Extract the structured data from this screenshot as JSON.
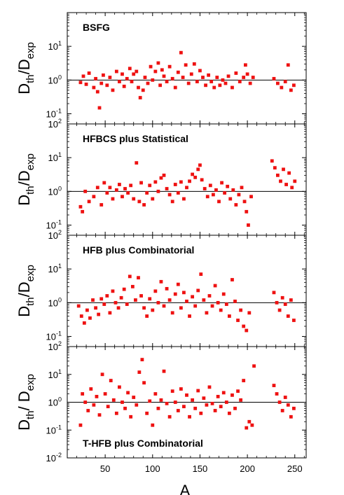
{
  "chart_data": {
    "type": "scatter",
    "xlabel": "A",
    "x_ticks": [
      "50",
      "100",
      "150",
      "200",
      "250"
    ],
    "xlim": [
      10,
      262
    ],
    "y_scale": "log",
    "marker_color": "#ee1111",
    "reference_line_y": 1,
    "panels": [
      {
        "title": "BSFG",
        "title_position": "top-left",
        "ylabel_main": "D",
        "ylabel_sub1": "th",
        "ylabel_mid": "/D",
        "ylabel_sub2": "exp",
        "ylim": [
          100,
          0.05
        ],
        "y_ticks": [
          {
            "base": "10",
            "exp": "1",
            "value": 10
          },
          {
            "base": "10",
            "exp": "0",
            "value": 1
          },
          {
            "base": "10",
            "exp": "-1",
            "value": 0.1
          },
          {
            "base": "10",
            "exp": "2",
            "value": 100
          }
        ],
        "points": [
          [
            24,
            0.85
          ],
          [
            27,
            1.3
          ],
          [
            30,
            0.75
          ],
          [
            33,
            1.6
          ],
          [
            38,
            0.6
          ],
          [
            40,
            1.1
          ],
          [
            42,
            0.45
          ],
          [
            44,
            0.15
          ],
          [
            46,
            0.8
          ],
          [
            48,
            1.4
          ],
          [
            52,
            0.7
          ],
          [
            55,
            1.2
          ],
          [
            58,
            0.5
          ],
          [
            62,
            1.8
          ],
          [
            65,
            0.9
          ],
          [
            68,
            1.5
          ],
          [
            70,
            0.65
          ],
          [
            73,
            1.1
          ],
          [
            76,
            2.2
          ],
          [
            78,
            0.9
          ],
          [
            80,
            1.5
          ],
          [
            83,
            1.8
          ],
          [
            85,
            0.6
          ],
          [
            87,
            0.3
          ],
          [
            90,
            0.5
          ],
          [
            92,
            1.2
          ],
          [
            95,
            0.8
          ],
          [
            98,
            2.5
          ],
          [
            100,
            1.0
          ],
          [
            103,
            1.8
          ],
          [
            106,
            3.2
          ],
          [
            108,
            0.7
          ],
          [
            110,
            2.0
          ],
          [
            112,
            1.3
          ],
          [
            115,
            0.9
          ],
          [
            118,
            2.5
          ],
          [
            121,
            1.1
          ],
          [
            124,
            0.6
          ],
          [
            127,
            1.7
          ],
          [
            130,
            6.5
          ],
          [
            132,
            1.2
          ],
          [
            135,
            2.8
          ],
          [
            138,
            0.8
          ],
          [
            141,
            1.5
          ],
          [
            144,
            3.0
          ],
          [
            147,
            0.9
          ],
          [
            150,
            1.9
          ],
          [
            153,
            1.2
          ],
          [
            156,
            0.7
          ],
          [
            159,
            1.4
          ],
          [
            162,
            0.9
          ],
          [
            165,
            0.6
          ],
          [
            168,
            1.2
          ],
          [
            171,
            0.7
          ],
          [
            174,
            1.0
          ],
          [
            177,
            0.8
          ],
          [
            180,
            1.3
          ],
          [
            184,
            0.6
          ],
          [
            188,
            1.6
          ],
          [
            192,
            0.9
          ],
          [
            196,
            1.2
          ],
          [
            198,
            2.8
          ],
          [
            200,
            1.5
          ],
          [
            203,
            0.8
          ],
          [
            206,
            1.2
          ],
          [
            228,
            1.1
          ],
          [
            232,
            0.8
          ],
          [
            236,
            0.6
          ],
          [
            240,
            0.9
          ],
          [
            243,
            2.8
          ],
          [
            246,
            0.5
          ],
          [
            249,
            0.7
          ]
        ]
      },
      {
        "title": "HFBCS plus Statistical",
        "title_position": "top-left",
        "ylabel_main": "D",
        "ylabel_sub1": "th",
        "ylabel_mid": "/D",
        "ylabel_sub2": "exp",
        "ylim": [
          100,
          0.05
        ],
        "y_ticks": [
          {
            "base": "10",
            "exp": "1",
            "value": 10
          },
          {
            "base": "10",
            "exp": "0",
            "value": 1
          },
          {
            "base": "10",
            "exp": "-1",
            "value": 0.1
          },
          {
            "base": "10",
            "exp": "2",
            "value": 100
          }
        ],
        "points": [
          [
            24,
            0.35
          ],
          [
            26,
            0.25
          ],
          [
            29,
            1.0
          ],
          [
            33,
            0.5
          ],
          [
            38,
            0.7
          ],
          [
            42,
            1.3
          ],
          [
            46,
            0.4
          ],
          [
            49,
            1.8
          ],
          [
            52,
            0.9
          ],
          [
            55,
            1.3
          ],
          [
            58,
            0.6
          ],
          [
            62,
            1.1
          ],
          [
            65,
            1.6
          ],
          [
            68,
            0.7
          ],
          [
            71,
            1.2
          ],
          [
            74,
            0.9
          ],
          [
            77,
            1.5
          ],
          [
            80,
            0.6
          ],
          [
            83,
            7.0
          ],
          [
            86,
            0.5
          ],
          [
            88,
            1.8
          ],
          [
            91,
            0.4
          ],
          [
            94,
            0.9
          ],
          [
            97,
            1.5
          ],
          [
            100,
            0.6
          ],
          [
            103,
            1.9
          ],
          [
            106,
            1.0
          ],
          [
            109,
            2.5
          ],
          [
            112,
            3.0
          ],
          [
            115,
            1.2
          ],
          [
            118,
            0.8
          ],
          [
            121,
            0.5
          ],
          [
            124,
            1.6
          ],
          [
            127,
            0.9
          ],
          [
            130,
            1.9
          ],
          [
            133,
            0.6
          ],
          [
            136,
            1.3
          ],
          [
            139,
            2.0
          ],
          [
            142,
            3.2
          ],
          [
            145,
            2.6
          ],
          [
            148,
            4.5
          ],
          [
            150,
            6.0
          ],
          [
            152,
            2.2
          ],
          [
            155,
            1.2
          ],
          [
            158,
            0.7
          ],
          [
            161,
            1.5
          ],
          [
            164,
            0.8
          ],
          [
            167,
            1.1
          ],
          [
            170,
            0.5
          ],
          [
            173,
            1.8
          ],
          [
            176,
            0.9
          ],
          [
            179,
            1.4
          ],
          [
            182,
            0.6
          ],
          [
            185,
            1.1
          ],
          [
            188,
            0.4
          ],
          [
            191,
            0.8
          ],
          [
            194,
            1.3
          ],
          [
            197,
            0.5
          ],
          [
            199,
            0.25
          ],
          [
            201,
            0.1
          ],
          [
            204,
            0.7
          ],
          [
            226,
            8.0
          ],
          [
            229,
            5.0
          ],
          [
            232,
            3.0
          ],
          [
            235,
            2.0
          ],
          [
            238,
            4.5
          ],
          [
            241,
            1.6
          ],
          [
            244,
            3.5
          ],
          [
            247,
            1.3
          ],
          [
            250,
            2.0
          ]
        ]
      },
      {
        "title": "HFB plus Combinatorial",
        "title_position": "top-left",
        "ylabel_main": "D",
        "ylabel_sub1": "th",
        "ylabel_mid": "/D",
        "ylabel_sub2": "exp",
        "ylim": [
          100,
          0.05
        ],
        "y_ticks": [
          {
            "base": "10",
            "exp": "1",
            "value": 10
          },
          {
            "base": "10",
            "exp": "0",
            "value": 1
          },
          {
            "base": "10",
            "exp": "-1",
            "value": 0.1
          },
          {
            "base": "10",
            "exp": "2",
            "value": 100
          }
        ],
        "points": [
          [
            22,
            0.8
          ],
          [
            25,
            0.4
          ],
          [
            28,
            0.25
          ],
          [
            31,
            0.6
          ],
          [
            34,
            0.35
          ],
          [
            37,
            1.2
          ],
          [
            40,
            0.7
          ],
          [
            43,
            0.45
          ],
          [
            46,
            1.3
          ],
          [
            49,
            0.9
          ],
          [
            52,
            1.6
          ],
          [
            55,
            0.5
          ],
          [
            58,
            2.2
          ],
          [
            61,
            1.0
          ],
          [
            64,
            0.7
          ],
          [
            67,
            1.4
          ],
          [
            70,
            2.5
          ],
          [
            73,
            0.9
          ],
          [
            76,
            6.0
          ],
          [
            79,
            3.0
          ],
          [
            82,
            1.2
          ],
          [
            85,
            5.5
          ],
          [
            88,
            1.6
          ],
          [
            91,
            0.7
          ],
          [
            94,
            0.4
          ],
          [
            97,
            1.3
          ],
          [
            100,
            0.6
          ],
          [
            103,
            2.2
          ],
          [
            106,
            1.0
          ],
          [
            109,
            4.2
          ],
          [
            112,
            0.8
          ],
          [
            115,
            2.6
          ],
          [
            118,
            1.2
          ],
          [
            121,
            0.5
          ],
          [
            124,
            1.8
          ],
          [
            127,
            3.5
          ],
          [
            130,
            0.7
          ],
          [
            133,
            2.0
          ],
          [
            136,
            1.1
          ],
          [
            139,
            0.4
          ],
          [
            142,
            1.5
          ],
          [
            145,
            0.8
          ],
          [
            148,
            2.3
          ],
          [
            151,
            7.0
          ],
          [
            154,
            1.2
          ],
          [
            157,
            0.5
          ],
          [
            160,
            1.6
          ],
          [
            163,
            0.8
          ],
          [
            166,
            3.2
          ],
          [
            169,
            1.0
          ],
          [
            172,
            0.6
          ],
          [
            175,
            1.8
          ],
          [
            178,
            0.9
          ],
          [
            181,
            0.4
          ],
          [
            184,
            4.8
          ],
          [
            187,
            1.1
          ],
          [
            190,
            0.3
          ],
          [
            193,
            0.6
          ],
          [
            196,
            0.2
          ],
          [
            199,
            0.15
          ],
          [
            202,
            0.5
          ],
          [
            228,
            2.0
          ],
          [
            231,
            1.0
          ],
          [
            234,
            0.6
          ],
          [
            237,
            1.4
          ],
          [
            240,
            0.9
          ],
          [
            243,
            0.4
          ],
          [
            246,
            1.2
          ],
          [
            249,
            0.3
          ]
        ]
      },
      {
        "title": "T-HFB plus Combinatorial",
        "title_position": "bottom-left",
        "ylabel_main": "D",
        "ylabel_sub1": "th",
        "ylabel_mid": "/ D",
        "ylabel_sub2": "exp",
        "ylim": [
          100,
          0.01
        ],
        "y_ticks": [
          {
            "base": "10",
            "exp": "1",
            "value": 10
          },
          {
            "base": "10",
            "exp": "0",
            "value": 1
          },
          {
            "base": "10",
            "exp": "-1",
            "value": 0.1
          },
          {
            "base": "10",
            "exp": "-2",
            "value": 0.01
          }
        ],
        "points": [
          [
            24,
            0.15
          ],
          [
            26,
            2.0
          ],
          [
            29,
            1.0
          ],
          [
            32,
            0.5
          ],
          [
            35,
            3.0
          ],
          [
            38,
            0.8
          ],
          [
            41,
            1.6
          ],
          [
            44,
            0.35
          ],
          [
            47,
            10.0
          ],
          [
            50,
            2.0
          ],
          [
            53,
            0.7
          ],
          [
            56,
            6.0
          ],
          [
            59,
            1.2
          ],
          [
            62,
            0.4
          ],
          [
            65,
            3.5
          ],
          [
            68,
            1.0
          ],
          [
            71,
            0.6
          ],
          [
            74,
            2.2
          ],
          [
            77,
            0.3
          ],
          [
            80,
            1.5
          ],
          [
            83,
            0.8
          ],
          [
            86,
            12.0
          ],
          [
            89,
            34.0
          ],
          [
            91,
            5.0
          ],
          [
            94,
            0.4
          ],
          [
            97,
            1.1
          ],
          [
            100,
            0.15
          ],
          [
            103,
            2.0
          ],
          [
            106,
            0.6
          ],
          [
            109,
            1.2
          ],
          [
            112,
            13.0
          ],
          [
            115,
            0.9
          ],
          [
            118,
            0.3
          ],
          [
            121,
            2.5
          ],
          [
            124,
            1.0
          ],
          [
            127,
            0.5
          ],
          [
            130,
            3.0
          ],
          [
            133,
            0.7
          ],
          [
            136,
            1.8
          ],
          [
            139,
            0.3
          ],
          [
            142,
            1.2
          ],
          [
            145,
            0.6
          ],
          [
            148,
            2.6
          ],
          [
            151,
            0.4
          ],
          [
            154,
            1.4
          ],
          [
            157,
            0.8
          ],
          [
            160,
            3.5
          ],
          [
            163,
            0.9
          ],
          [
            166,
            0.5
          ],
          [
            169,
            1.6
          ],
          [
            172,
            0.7
          ],
          [
            175,
            2.2
          ],
          [
            178,
            1.0
          ],
          [
            181,
            0.4
          ],
          [
            184,
            1.8
          ],
          [
            187,
            0.6
          ],
          [
            190,
            2.5
          ],
          [
            193,
            1.2
          ],
          [
            196,
            6.0
          ],
          [
            199,
            0.12
          ],
          [
            202,
            0.2
          ],
          [
            205,
            0.15
          ],
          [
            207,
            20.0
          ],
          [
            228,
            4.0
          ],
          [
            231,
            2.0
          ],
          [
            234,
            1.0
          ],
          [
            237,
            0.5
          ],
          [
            240,
            1.5
          ],
          [
            243,
            0.8
          ],
          [
            246,
            0.3
          ],
          [
            249,
            0.6
          ]
        ]
      }
    ]
  }
}
